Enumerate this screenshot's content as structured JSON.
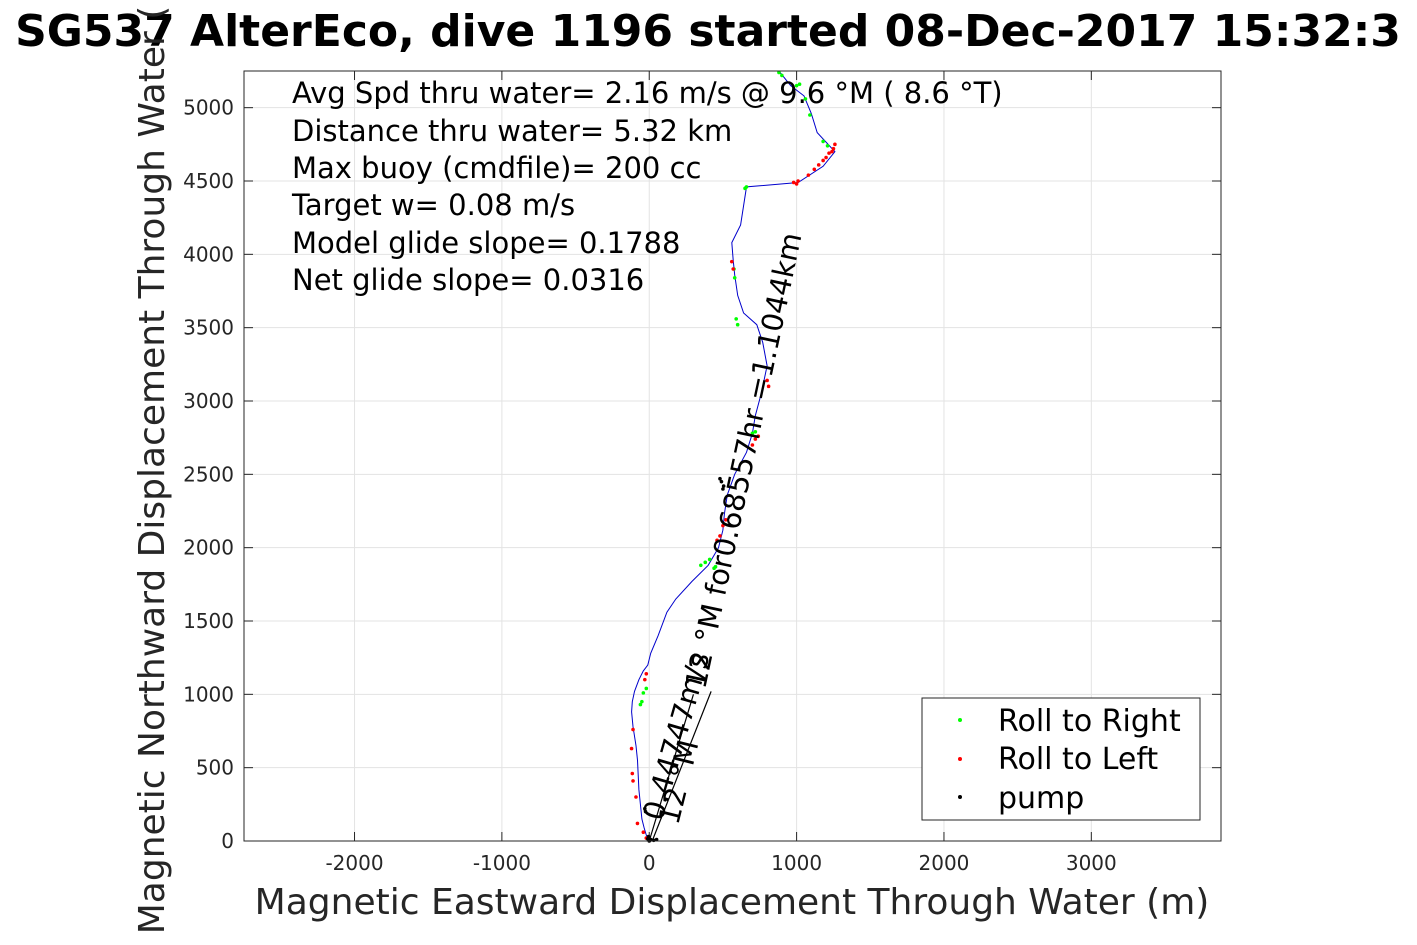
{
  "chart_data": {
    "type": "scatter",
    "title": "SG537 AlterEco, dive 1196 started 08-Dec-2017 15:32:3",
    "xlabel": "Magnetic Eastward Displacement Through Water (m)",
    "ylabel": "Magnetic Northward Displacement Through Water (",
    "xlim": [
      -2750,
      3880
    ],
    "ylim": [
      0,
      5250
    ],
    "xticks": [
      -2000,
      -1000,
      0,
      1000,
      2000,
      3000
    ],
    "yticks": [
      0,
      500,
      1000,
      1500,
      2000,
      2500,
      3000,
      3500,
      4000,
      4500,
      5000
    ],
    "grid": true,
    "annotations": [
      "Avg Spd thru water=  2.16 m/s @   9.6 °M (  8.6 °T)",
      "Distance thru water=  5.32 km",
      "Max buoy (cmdfile)= 200 cc",
      "Target w= 0.08 m/s",
      "Model glide slope= 0.1788",
      "Net glide slope= 0.0316"
    ],
    "rotated_labels": [
      "0.44747m/s",
      "12 °M",
      "12 °M for0.68557hr =1.1044km"
    ],
    "track": {
      "name": "",
      "color": "#0000cc",
      "x": [
        0,
        -20,
        -35,
        -50,
        -60,
        -70,
        -75,
        -80,
        -90,
        -110,
        -120,
        -115,
        -100,
        -70,
        -40,
        -10,
        10,
        60,
        120,
        180,
        290,
        400,
        470,
        500,
        510,
        530,
        580,
        660,
        700,
        720,
        760,
        800,
        770,
        730,
        640,
        600,
        580,
        570,
        560,
        620,
        660,
        1010,
        1180,
        1260,
        1140,
        1100,
        1050,
        960,
        880
      ],
      "y": [
        0,
        40,
        90,
        150,
        250,
        350,
        450,
        550,
        650,
        780,
        880,
        950,
        1020,
        1100,
        1160,
        1200,
        1280,
        1400,
        1560,
        1650,
        1770,
        1880,
        2000,
        2120,
        2230,
        2360,
        2500,
        2650,
        2780,
        2900,
        3050,
        3240,
        3400,
        3520,
        3600,
        3720,
        3860,
        3960,
        4080,
        4200,
        4460,
        4490,
        4600,
        4700,
        4830,
        4960,
        5080,
        5150,
        5250
      ]
    },
    "roll_right": {
      "name": "Roll to Right",
      "color": "#00ff00",
      "x": [
        -50,
        -60,
        -40,
        -20,
        350,
        380,
        410,
        440,
        450,
        700,
        720,
        580,
        575,
        590,
        600,
        650,
        660,
        1000,
        1020,
        1060,
        1090,
        1180,
        1210,
        880,
        900
      ],
      "y": [
        950,
        930,
        1010,
        1040,
        1880,
        1900,
        1920,
        1860,
        1870,
        2780,
        2790,
        3840,
        3900,
        3560,
        3520,
        4450,
        4460,
        5150,
        5160,
        5060,
        4950,
        4770,
        4740,
        5240,
        5220
      ]
    },
    "roll_left": {
      "name": "Roll to Left",
      "color": "#ff0000",
      "x": [
        -20,
        -40,
        -80,
        -90,
        -110,
        -115,
        -120,
        -110,
        -30,
        -20,
        460,
        480,
        500,
        520,
        700,
        720,
        740,
        800,
        810,
        560,
        570,
        1000,
        1080,
        1120,
        1150,
        1180,
        1200,
        1220,
        1240,
        1250,
        980,
        1010,
        1260
      ],
      "y": [
        20,
        60,
        120,
        300,
        410,
        460,
        630,
        760,
        1100,
        1140,
        2050,
        2080,
        2150,
        2190,
        2700,
        2740,
        2760,
        3140,
        3100,
        3950,
        3900,
        4480,
        4540,
        4580,
        4610,
        4640,
        4660,
        4690,
        4700,
        4720,
        4490,
        4500,
        4750
      ]
    },
    "pump": {
      "name": "pump",
      "color": "#000000",
      "x": [
        0,
        10,
        -5,
        -25,
        -30,
        5,
        30,
        50,
        -10,
        500,
        505,
        490,
        480
      ],
      "y": [
        0,
        10,
        30,
        200,
        220,
        5,
        5,
        10,
        15,
        2400,
        2420,
        2450,
        2470
      ]
    },
    "current_lines": [
      {
        "x": [
          0,
          300
        ],
        "y": [
          0,
          1000
        ]
      },
      {
        "x": [
          20,
          420
        ],
        "y": [
          0,
          1020
        ]
      }
    ],
    "legend": {
      "location": "bottom-right",
      "entries": [
        "Roll to Right",
        "Roll to Left",
        "pump"
      ]
    }
  }
}
